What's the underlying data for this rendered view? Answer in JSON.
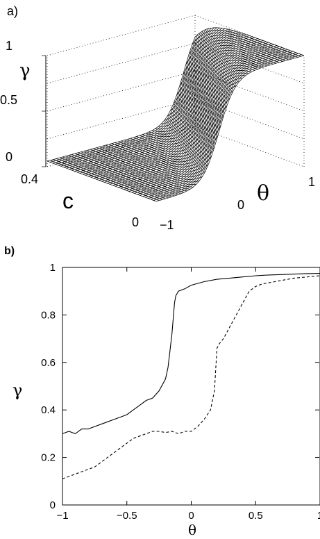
{
  "chart_data": [
    {
      "type": "surface3d",
      "panel_label": "a)",
      "zlabel": "γ",
      "xlabel": "θ",
      "ylabel": "c",
      "z_ticks": [
        "0",
        "0.5",
        "1"
      ],
      "x_ticks": [
        "−1",
        "0",
        "1"
      ],
      "y_ticks": [
        "0",
        "0.4"
      ],
      "xlim": [
        -1,
        1
      ],
      "ylim": [
        0,
        0.5
      ],
      "zlim": [
        0,
        1
      ],
      "grid": "dotted box lines",
      "surface": {
        "description_values": "gamma as function of theta and c",
        "theta_transition_at_c0": -0.15,
        "theta_transition_at_c_max": 0.85,
        "gamma_low": 0.05,
        "gamma_high": 1.0
      }
    },
    {
      "type": "line",
      "panel_label": "b)",
      "xlabel": "θ",
      "ylabel": "γ",
      "xlim": [
        -1,
        1
      ],
      "ylim": [
        0,
        1
      ],
      "x_ticks": [
        "−1",
        "−0.5",
        "0",
        "0.5",
        "1"
      ],
      "y_ticks": [
        "0",
        "0.2",
        "0.4",
        "0.6",
        "0.8",
        "1"
      ],
      "series": [
        {
          "style": "solid",
          "x": [
            -1.0,
            -0.95,
            -0.9,
            -0.85,
            -0.8,
            -0.75,
            -0.7,
            -0.65,
            -0.6,
            -0.55,
            -0.5,
            -0.45,
            -0.4,
            -0.35,
            -0.3,
            -0.25,
            -0.2,
            -0.18,
            -0.15,
            -0.13,
            -0.12,
            -0.1,
            -0.05,
            0.0,
            0.1,
            0.2,
            0.3,
            0.4,
            0.5,
            0.6,
            0.7,
            0.8,
            0.9,
            1.0
          ],
          "y": [
            0.3,
            0.31,
            0.3,
            0.32,
            0.32,
            0.33,
            0.34,
            0.35,
            0.36,
            0.37,
            0.38,
            0.4,
            0.42,
            0.44,
            0.45,
            0.48,
            0.53,
            0.58,
            0.72,
            0.85,
            0.88,
            0.9,
            0.91,
            0.925,
            0.94,
            0.95,
            0.955,
            0.96,
            0.965,
            0.968,
            0.97,
            0.972,
            0.974,
            0.975
          ]
        },
        {
          "style": "dashed",
          "x": [
            -1.0,
            -0.95,
            -0.9,
            -0.85,
            -0.8,
            -0.75,
            -0.7,
            -0.65,
            -0.6,
            -0.55,
            -0.5,
            -0.45,
            -0.4,
            -0.35,
            -0.3,
            -0.25,
            -0.2,
            -0.15,
            -0.1,
            -0.05,
            0.0,
            0.05,
            0.1,
            0.15,
            0.18,
            0.2,
            0.22,
            0.25,
            0.3,
            0.35,
            0.4,
            0.45,
            0.5,
            0.55,
            0.6,
            0.65,
            0.7,
            0.8,
            0.9,
            1.0
          ],
          "y": [
            0.11,
            0.12,
            0.13,
            0.14,
            0.15,
            0.16,
            0.18,
            0.2,
            0.22,
            0.24,
            0.26,
            0.28,
            0.29,
            0.3,
            0.31,
            0.31,
            0.305,
            0.31,
            0.3,
            0.31,
            0.31,
            0.33,
            0.36,
            0.4,
            0.48,
            0.66,
            0.68,
            0.7,
            0.75,
            0.8,
            0.85,
            0.9,
            0.92,
            0.93,
            0.935,
            0.94,
            0.945,
            0.955,
            0.96,
            0.965
          ]
        }
      ]
    }
  ]
}
